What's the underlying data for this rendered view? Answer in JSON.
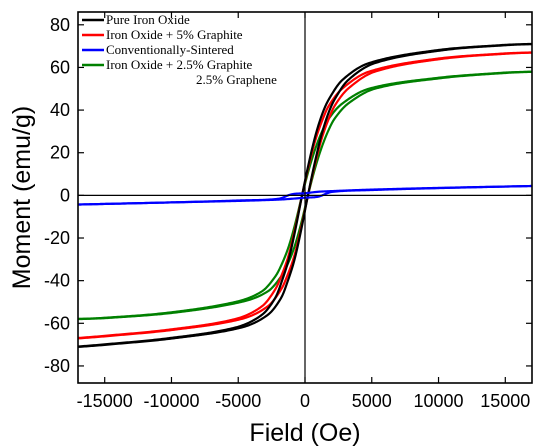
{
  "chart_data": {
    "type": "line",
    "xlabel": "Field (Oe)",
    "ylabel": "Moment (emu/g)",
    "xlim": [
      -17000,
      17000
    ],
    "ylim": [
      -88,
      86
    ],
    "xticks": [
      -15000,
      -10000,
      -5000,
      0,
      5000,
      10000,
      15000
    ],
    "yticks": [
      -80,
      -60,
      -40,
      -20,
      0,
      20,
      40,
      60,
      80
    ],
    "grid": false,
    "zero_lines": true,
    "legend_placement": "top-left",
    "legend": [
      {
        "lines": [
          "Pure Iron Oxide"
        ],
        "color": "#000000"
      },
      {
        "lines": [
          "Iron Oxide + 5% Graphite"
        ],
        "color": "#ff0000"
      },
      {
        "lines": [
          "Conventionally-Sintered"
        ],
        "color": "#0000ff"
      },
      {
        "lines": [
          "Iron Oxide + 2.5% Graphite",
          "2.5% Graphene"
        ],
        "color": "#008000"
      }
    ],
    "series": [
      {
        "color": "#000000",
        "hysteresis_offset_oe": 220,
        "upper_branch": [
          [
            -17000,
            -71
          ],
          [
            -15000,
            -70
          ],
          [
            -10000,
            -67
          ],
          [
            -5000,
            -62
          ],
          [
            -3000,
            -56
          ],
          [
            -2000,
            -48
          ],
          [
            -1500,
            -40
          ],
          [
            -1000,
            -30
          ],
          [
            -500,
            -16
          ],
          [
            0,
            0
          ],
          [
            500,
            15
          ],
          [
            1000,
            28
          ],
          [
            1500,
            38
          ],
          [
            2000,
            45
          ],
          [
            3000,
            54
          ],
          [
            5000,
            62
          ],
          [
            10000,
            68
          ],
          [
            15000,
            70.5
          ],
          [
            17000,
            71
          ]
        ]
      },
      {
        "color": "#ff0000",
        "hysteresis_offset_oe": 220,
        "upper_branch": [
          [
            -17000,
            -67
          ],
          [
            -15000,
            -66
          ],
          [
            -10000,
            -63
          ],
          [
            -5000,
            -58
          ],
          [
            -3000,
            -52
          ],
          [
            -2000,
            -44
          ],
          [
            -1500,
            -37
          ],
          [
            -1000,
            -28
          ],
          [
            -500,
            -15
          ],
          [
            0,
            0
          ],
          [
            500,
            14
          ],
          [
            1000,
            26
          ],
          [
            1500,
            35
          ],
          [
            2000,
            42
          ],
          [
            3000,
            50
          ],
          [
            5000,
            58
          ],
          [
            10000,
            64
          ],
          [
            15000,
            66.5
          ],
          [
            17000,
            67
          ]
        ]
      },
      {
        "color": "#008000",
        "hysteresis_offset_oe": 220,
        "upper_branch": [
          [
            -17000,
            -58
          ],
          [
            -15000,
            -57.5
          ],
          [
            -10000,
            -55
          ],
          [
            -5000,
            -50
          ],
          [
            -3000,
            -45
          ],
          [
            -2000,
            -38
          ],
          [
            -1500,
            -32
          ],
          [
            -1000,
            -24
          ],
          [
            -500,
            -13
          ],
          [
            0,
            0
          ],
          [
            500,
            12
          ],
          [
            1000,
            22
          ],
          [
            1500,
            30
          ],
          [
            2000,
            36
          ],
          [
            3000,
            43
          ],
          [
            5000,
            50
          ],
          [
            10000,
            55
          ],
          [
            15000,
            57.5
          ],
          [
            17000,
            58
          ]
        ]
      },
      {
        "color": "#0000ff",
        "branch_upper": [
          [
            -17000,
            -4.3
          ],
          [
            -10000,
            -3.3
          ],
          [
            -5000,
            -2.4
          ],
          [
            -2000,
            -1.6
          ],
          [
            -1000,
            0.5
          ],
          [
            0,
            1.0
          ],
          [
            1000,
            1.7
          ],
          [
            2000,
            2.0
          ],
          [
            5000,
            2.7
          ],
          [
            10000,
            3.5
          ],
          [
            17000,
            4.4
          ]
        ],
        "branch_lower": [
          [
            -17000,
            -4.3
          ],
          [
            -10000,
            -3.3
          ],
          [
            -5000,
            -2.6
          ],
          [
            -2000,
            -2.0
          ],
          [
            -1000,
            -1.6
          ],
          [
            0,
            -1.1
          ],
          [
            1000,
            -0.6
          ],
          [
            2000,
            1.6
          ],
          [
            5000,
            2.5
          ],
          [
            10000,
            3.4
          ],
          [
            17000,
            4.4
          ]
        ]
      }
    ]
  }
}
